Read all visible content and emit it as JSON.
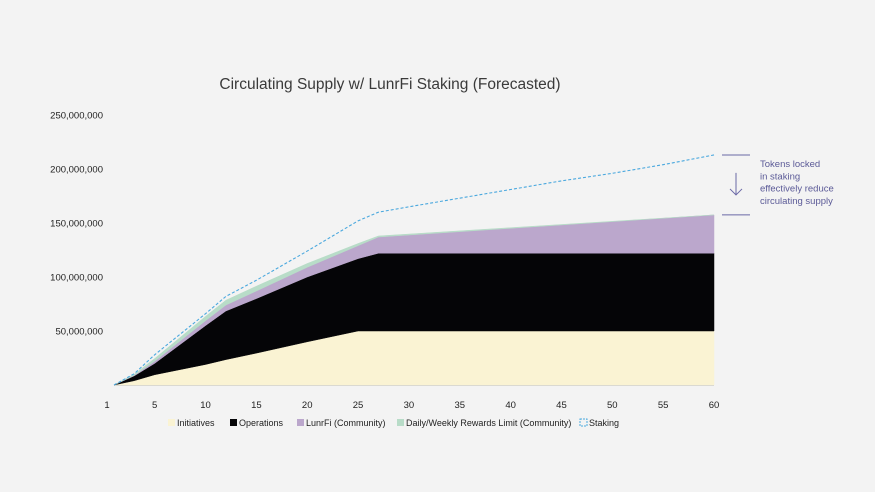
{
  "chart_data": {
    "type": "area",
    "title": "Circulating Supply w/ LunrFi Staking (Forecasted)",
    "xlabel": "",
    "ylabel": "",
    "x_ticks": [
      1,
      5,
      10,
      15,
      20,
      25,
      30,
      35,
      40,
      45,
      50,
      55,
      60
    ],
    "y_ticks": [
      50000000,
      100000000,
      150000000,
      200000000,
      250000000
    ],
    "y_tick_labels": [
      "50,000,000",
      "100,000,000",
      "150,000,000",
      "200,000,000",
      "250,000,000"
    ],
    "xlim": [
      1,
      60
    ],
    "ylim": [
      0,
      250000000
    ],
    "grid": false,
    "legend_position": "bottom",
    "series": [
      {
        "name": "Initiatives",
        "kind": "stacked-area",
        "color": "#faf3d3",
        "points": [
          [
            1,
            0
          ],
          [
            3,
            4000000
          ],
          [
            5,
            9500000
          ],
          [
            10,
            19000000
          ],
          [
            12,
            23500000
          ],
          [
            15,
            29500000
          ],
          [
            20,
            40000000
          ],
          [
            25,
            50000000
          ],
          [
            27,
            50000000
          ],
          [
            60,
            50000000
          ]
        ]
      },
      {
        "name": "Operations",
        "kind": "stacked-area",
        "color": "#050507",
        "points": [
          [
            1,
            0
          ],
          [
            3,
            4500000
          ],
          [
            5,
            10500000
          ],
          [
            10,
            36000000
          ],
          [
            12,
            45000000
          ],
          [
            15,
            50500000
          ],
          [
            20,
            60000000
          ],
          [
            25,
            67000000
          ],
          [
            27,
            72000000
          ],
          [
            60,
            72000000
          ]
        ]
      },
      {
        "name": "LunrFi (Community)",
        "kind": "stacked-area",
        "color": "#bba7cc",
        "points": [
          [
            1,
            0
          ],
          [
            3,
            500000
          ],
          [
            5,
            2000000
          ],
          [
            10,
            4500000
          ],
          [
            12,
            5500000
          ],
          [
            15,
            7000000
          ],
          [
            20,
            9000000
          ],
          [
            25,
            12000000
          ],
          [
            27,
            15000000
          ],
          [
            60,
            35500000
          ]
        ]
      },
      {
        "name": "Daily/Weekly Rewards Limit (Community)",
        "kind": "stacked-area",
        "color": "#b8dcc8",
        "points": [
          [
            1,
            0
          ],
          [
            3,
            1000000
          ],
          [
            5,
            2500000
          ],
          [
            10,
            4000000
          ],
          [
            12,
            4500000
          ],
          [
            15,
            4500000
          ],
          [
            20,
            3500000
          ],
          [
            25,
            2000000
          ],
          [
            27,
            1000000
          ],
          [
            60,
            0
          ]
        ]
      },
      {
        "name": "Staking",
        "kind": "dashed-line",
        "color": "#4aa8de",
        "points": [
          [
            1,
            0
          ],
          [
            3,
            10500000
          ],
          [
            5,
            28000000
          ],
          [
            10,
            66000000
          ],
          [
            12,
            82000000
          ],
          [
            15,
            97000000
          ],
          [
            20,
            124000000
          ],
          [
            25,
            152000000
          ],
          [
            27,
            160000000
          ],
          [
            30,
            165000000
          ],
          [
            35,
            173000000
          ],
          [
            40,
            181000000
          ],
          [
            45,
            189000000
          ],
          [
            50,
            196000000
          ],
          [
            55,
            204000000
          ],
          [
            60,
            213000000
          ]
        ]
      }
    ],
    "annotation": {
      "lines": [
        "Tokens locked",
        "in staking",
        "effectively reduce",
        "circulating supply"
      ],
      "top_value": 213000000,
      "bottom_value": 157500000
    }
  }
}
